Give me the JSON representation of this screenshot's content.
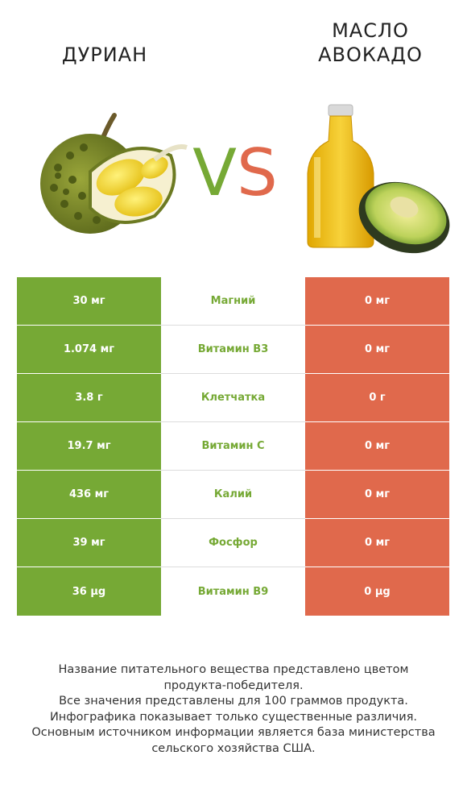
{
  "left_title": "ДУРИАН",
  "right_title_line1": "МАСЛО",
  "right_title_line2": "АВОКАДО",
  "vs": {
    "v": "V",
    "s": "S"
  },
  "colors": {
    "winner_left": "#76a935",
    "winner_right": "#e0694c"
  },
  "rows": [
    {
      "left": "30 мг",
      "name": "Магний",
      "right": "0 мг"
    },
    {
      "left": "1.074 мг",
      "name": "Витамин B3",
      "right": "0 мг"
    },
    {
      "left": "3.8 г",
      "name": "Клетчатка",
      "right": "0 г"
    },
    {
      "left": "19.7 мг",
      "name": "Витамин C",
      "right": "0 мг"
    },
    {
      "left": "436 мг",
      "name": "Калий",
      "right": "0 мг"
    },
    {
      "left": "39 мг",
      "name": "Фосфор",
      "right": "0 мг"
    },
    {
      "left": "36 µg",
      "name": "Витамин B9",
      "right": "0 µg"
    }
  ],
  "footer": [
    "Название питательного вещества представлено цветом",
    "продукта-победителя.",
    "Все значения представлены для 100 граммов продукта.",
    "Инфографика показывает только существенные различия.",
    "Основным источником информации является база министерства",
    "сельского хозяйства США."
  ]
}
